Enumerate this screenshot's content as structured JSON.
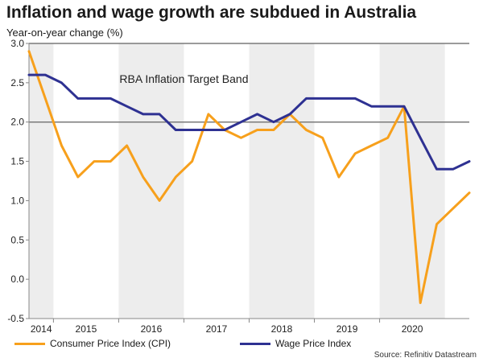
{
  "chart_data": {
    "type": "line",
    "title": "Inflation and wage growth are subdued in Australia",
    "subtitle": "Year-on-year change (%)",
    "source": "Source: Refinitiv Datastream",
    "xlabel": "",
    "ylabel": "Year-on-year change (%)",
    "ylim": [
      -0.5,
      3.0
    ],
    "yticks": [
      "3.0",
      "2.5",
      "2.0",
      "1.5",
      "1.0",
      "0.5",
      "0.0",
      "-0.5"
    ],
    "ytick_values": [
      3.0,
      2.5,
      2.0,
      1.5,
      1.0,
      0.5,
      0.0,
      -0.5
    ],
    "xlim": [
      0,
      27
    ],
    "years": [
      {
        "label": "2014",
        "start": 0,
        "end": 2
      },
      {
        "label": "2015",
        "start": 2,
        "end": 6
      },
      {
        "label": "2016",
        "start": 6,
        "end": 10
      },
      {
        "label": "2017",
        "start": 10,
        "end": 14
      },
      {
        "label": "2018",
        "start": 14,
        "end": 18
      },
      {
        "label": "2019",
        "start": 18,
        "end": 22
      },
      {
        "label": "2020",
        "start": 22,
        "end": 26
      }
    ],
    "shaded_years": [
      "2014",
      "2016",
      "2018",
      "2020"
    ],
    "band": {
      "label": "RBA Inflation Target Band",
      "low": 2.0,
      "high": 3.0
    },
    "series": [
      {
        "name": "Consumer Price Index (CPI)",
        "color": "#F7A01C",
        "x": [
          0,
          1,
          2,
          3,
          4,
          5,
          6,
          7,
          8,
          9,
          10,
          11,
          12,
          13,
          14,
          15,
          16,
          17,
          18,
          19,
          20,
          21,
          22,
          23,
          24,
          25,
          26,
          27
        ],
        "values": [
          2.9,
          2.3,
          1.7,
          1.3,
          1.5,
          1.5,
          1.7,
          1.3,
          1.0,
          1.3,
          1.5,
          2.1,
          1.9,
          1.8,
          1.9,
          1.9,
          2.1,
          1.9,
          1.8,
          1.3,
          1.6,
          1.7,
          1.8,
          2.2,
          -0.3,
          0.7,
          0.9,
          1.1
        ]
      },
      {
        "name": "Wage Price Index",
        "color": "#2E3192",
        "x": [
          0,
          1,
          2,
          3,
          4,
          5,
          6,
          7,
          8,
          9,
          10,
          11,
          12,
          13,
          14,
          15,
          16,
          17,
          18,
          19,
          20,
          21,
          22,
          23,
          24,
          25,
          26,
          27
        ],
        "values": [
          2.6,
          2.6,
          2.5,
          2.3,
          2.3,
          2.3,
          2.2,
          2.1,
          2.1,
          1.9,
          1.9,
          1.9,
          1.9,
          2.0,
          2.1,
          2.0,
          2.1,
          2.3,
          2.3,
          2.3,
          2.3,
          2.2,
          2.2,
          2.2,
          1.8,
          1.4,
          1.4,
          1.5
        ]
      }
    ]
  }
}
